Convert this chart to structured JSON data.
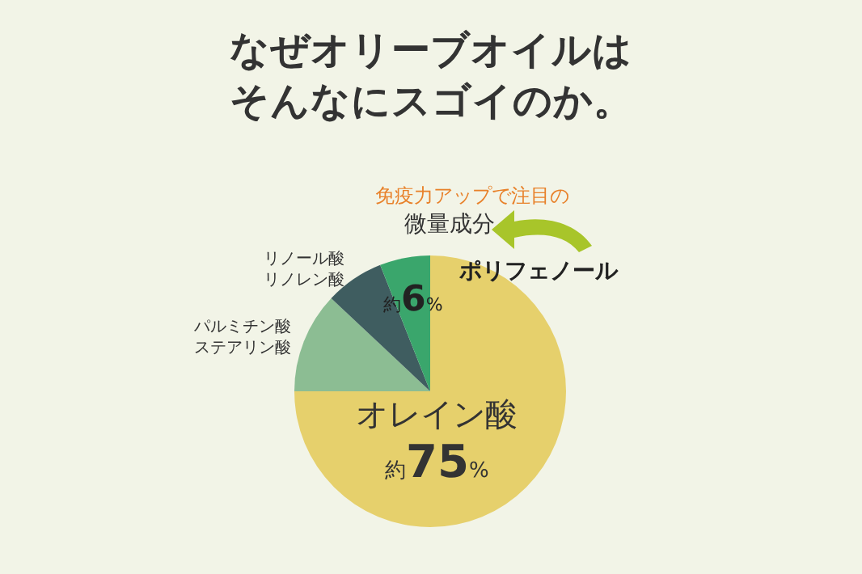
{
  "chart_data": {
    "type": "pie",
    "title": "なぜオリーブオイルはそんなにスゴイのか。",
    "categories": [
      "オレイン酸",
      "パルミチン酸ステアリン酸",
      "リノール酸リノレン酸",
      "微量成分"
    ],
    "values": [
      75,
      12,
      7,
      6
    ],
    "colors": [
      "#e6d06c",
      "#8cbd93",
      "#3f5d60",
      "#3aa66c"
    ],
    "value_labels": [
      "約75%",
      null,
      null,
      "約6%"
    ],
    "annotations": [
      "免疫力アップで注目の",
      "ポリフェノール"
    ],
    "legend": false
  }
}
